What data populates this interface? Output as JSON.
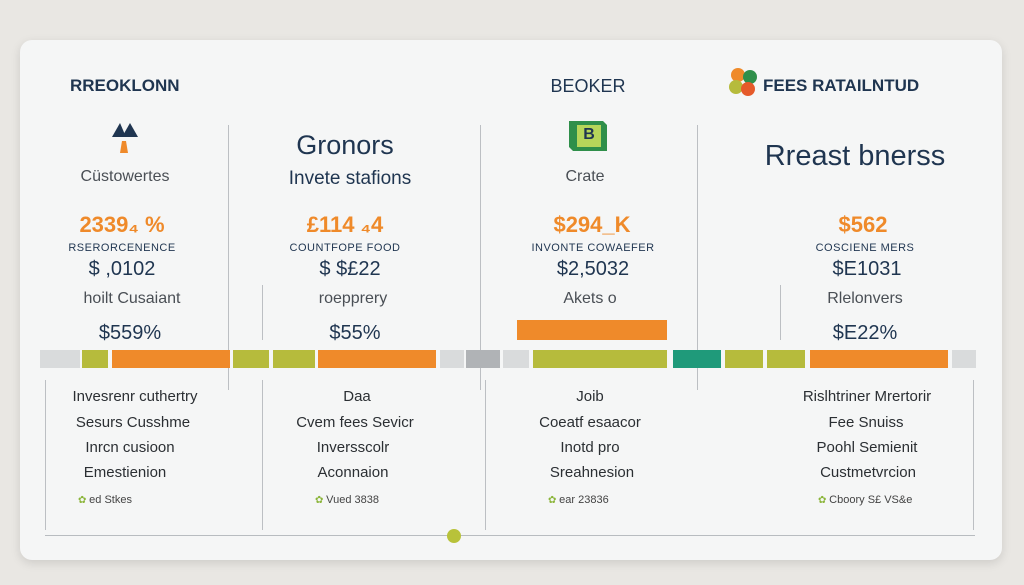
{
  "colors": {
    "orange": "#ef8a2a",
    "olive": "#b6bb3c",
    "teal": "#1f9a7a",
    "navy": "#1f3550",
    "light_gray": "#d9dbdc",
    "mid_gray": "#b0b3b6"
  },
  "col1": {
    "title": "RREOKLONN",
    "icon": "mountain-logo-icon",
    "subtitle": "Cüstowertes",
    "price": "2339₄ %",
    "label": "RSERORCENENCE",
    "price2": "$ ,0102",
    "desc": "hoilt Cusaiant",
    "percent": "$559%",
    "list": [
      "Invesrenr cuthertry",
      "Sesurs Cusshme",
      "Inrcn cusioon",
      "Emestienion"
    ],
    "footer": "ed Stkes"
  },
  "col2": {
    "title": "Gronors",
    "subtitle": "Invete stafions",
    "price": "£114 ₄4",
    "label": "COUNTFOPE FOOD",
    "price2": "$ $£22",
    "desc": "roepprery",
    "percent": "$55%",
    "list": [
      "Daa",
      "Cvem fees Sevicr",
      "Inversscolr",
      "Aconnaion"
    ],
    "footer": "Vued 3838"
  },
  "col3": {
    "title": "BEOKER",
    "icon": "b-cube-logo-icon",
    "icon_letter": "B",
    "subtitle": "Crate",
    "price": "$294_K",
    "label": "INVONTE COWAEFER",
    "price2": "$2,5032",
    "desc": "Akets o",
    "list": [
      "Joib",
      "Coeatf esaacor",
      "Inotd pro",
      "Sreahnesion"
    ],
    "footer": "ear 23836"
  },
  "col4": {
    "title": "FEES RATAILNTUD",
    "icon": "flower-logo-icon",
    "subtitle": "Rreast bnerss",
    "price": "$562",
    "label": "COSCIENE MERS",
    "price2": "$E1031",
    "desc": "Rlelonvers",
    "percent": "$E22%",
    "list": [
      "Rislhtriner Mrertorir",
      "Fee Snuiss",
      "Poohl Semienit",
      "Custmetvrcion"
    ],
    "footer": "Cboory S£ VS&e"
  }
}
